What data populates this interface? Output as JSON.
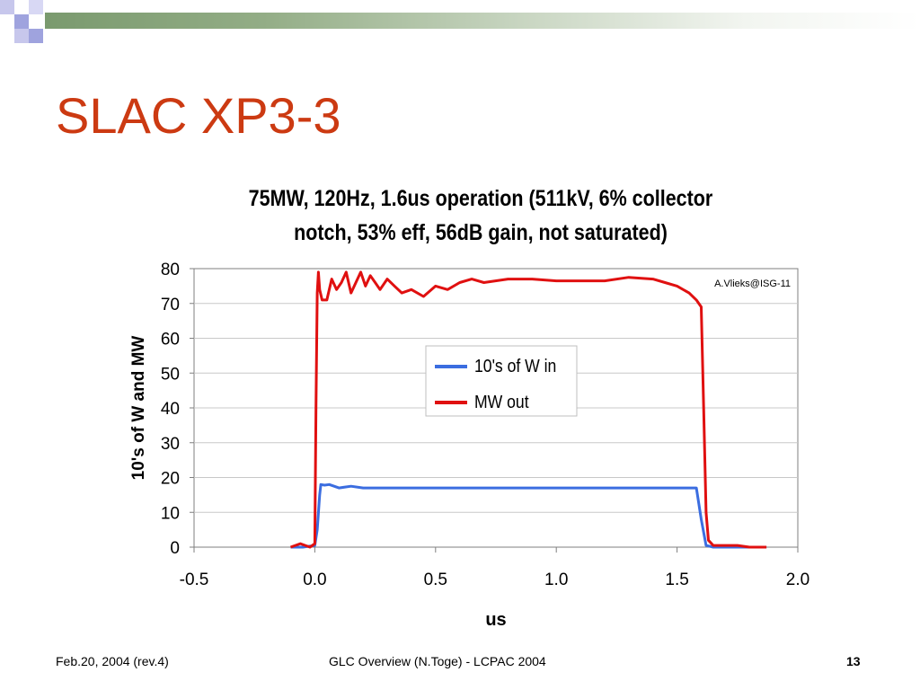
{
  "slide": {
    "title": "SLAC XP3-3",
    "footer_left": "Feb.20, 2004 (rev.4)",
    "footer_center": "GLC Overview (N.Toge) - LCPAC 2004",
    "page_number": "13"
  },
  "colors": {
    "title": "#cc3a12",
    "band": "#7a9a6e",
    "series_in": "#3b6de0",
    "series_out": "#e01010"
  },
  "chart_data": {
    "type": "line",
    "title_line1": "75MW, 120Hz, 1.6us operation (511kV, 6% collector",
    "title_line2": "notch, 53% eff, 56dB gain, not saturated)",
    "xlabel": "us",
    "ylabel": "10's of W and MW",
    "xlim": [
      -0.5,
      2.0
    ],
    "ylim": [
      0,
      80
    ],
    "x_ticks": [
      "-0.5",
      "0.0",
      "0.5",
      "1.0",
      "1.5",
      "2.0"
    ],
    "y_ticks": [
      "0",
      "10",
      "20",
      "30",
      "40",
      "50",
      "60",
      "70",
      "80"
    ],
    "annotation": "A.Vlieks@ISG-11",
    "legend_position": "center-right",
    "grid": "horizontal",
    "series": [
      {
        "name": "10's of W in",
        "x": [
          -0.1,
          -0.05,
          0.0,
          0.01,
          0.02,
          0.025,
          0.04,
          0.06,
          0.1,
          0.15,
          0.2,
          0.3,
          0.4,
          0.5,
          0.6,
          0.7,
          0.8,
          0.9,
          1.0,
          1.1,
          1.2,
          1.3,
          1.4,
          1.5,
          1.58,
          1.6,
          1.62,
          1.65,
          1.8,
          1.87
        ],
        "values": [
          0,
          0,
          0.5,
          5,
          15,
          18,
          17.8,
          18,
          17,
          17.5,
          17,
          17,
          17,
          17,
          17,
          17,
          17,
          17,
          17,
          17,
          17,
          17,
          17,
          17,
          17,
          8,
          0.5,
          0,
          0,
          0
        ]
      },
      {
        "name": "MW out",
        "x": [
          -0.1,
          -0.06,
          -0.02,
          0.0,
          0.005,
          0.01,
          0.015,
          0.02,
          0.03,
          0.05,
          0.07,
          0.09,
          0.11,
          0.13,
          0.15,
          0.17,
          0.19,
          0.21,
          0.23,
          0.25,
          0.27,
          0.3,
          0.33,
          0.36,
          0.4,
          0.45,
          0.5,
          0.55,
          0.6,
          0.65,
          0.7,
          0.8,
          0.9,
          1.0,
          1.1,
          1.2,
          1.3,
          1.4,
          1.45,
          1.5,
          1.55,
          1.58,
          1.6,
          1.61,
          1.62,
          1.63,
          1.65,
          1.7,
          1.75,
          1.8,
          1.87
        ],
        "values": [
          0,
          1,
          0,
          1,
          40,
          73,
          79,
          74,
          71,
          71,
          77,
          74,
          76,
          79,
          73,
          76,
          79,
          75,
          78,
          76,
          74,
          77,
          75,
          73,
          74,
          72,
          75,
          74,
          76,
          77,
          76,
          77,
          77,
          76.5,
          76.5,
          76.5,
          77.5,
          77,
          76,
          75,
          73,
          71,
          69,
          40,
          10,
          2,
          0.5,
          0.5,
          0.5,
          0,
          0
        ]
      }
    ]
  }
}
